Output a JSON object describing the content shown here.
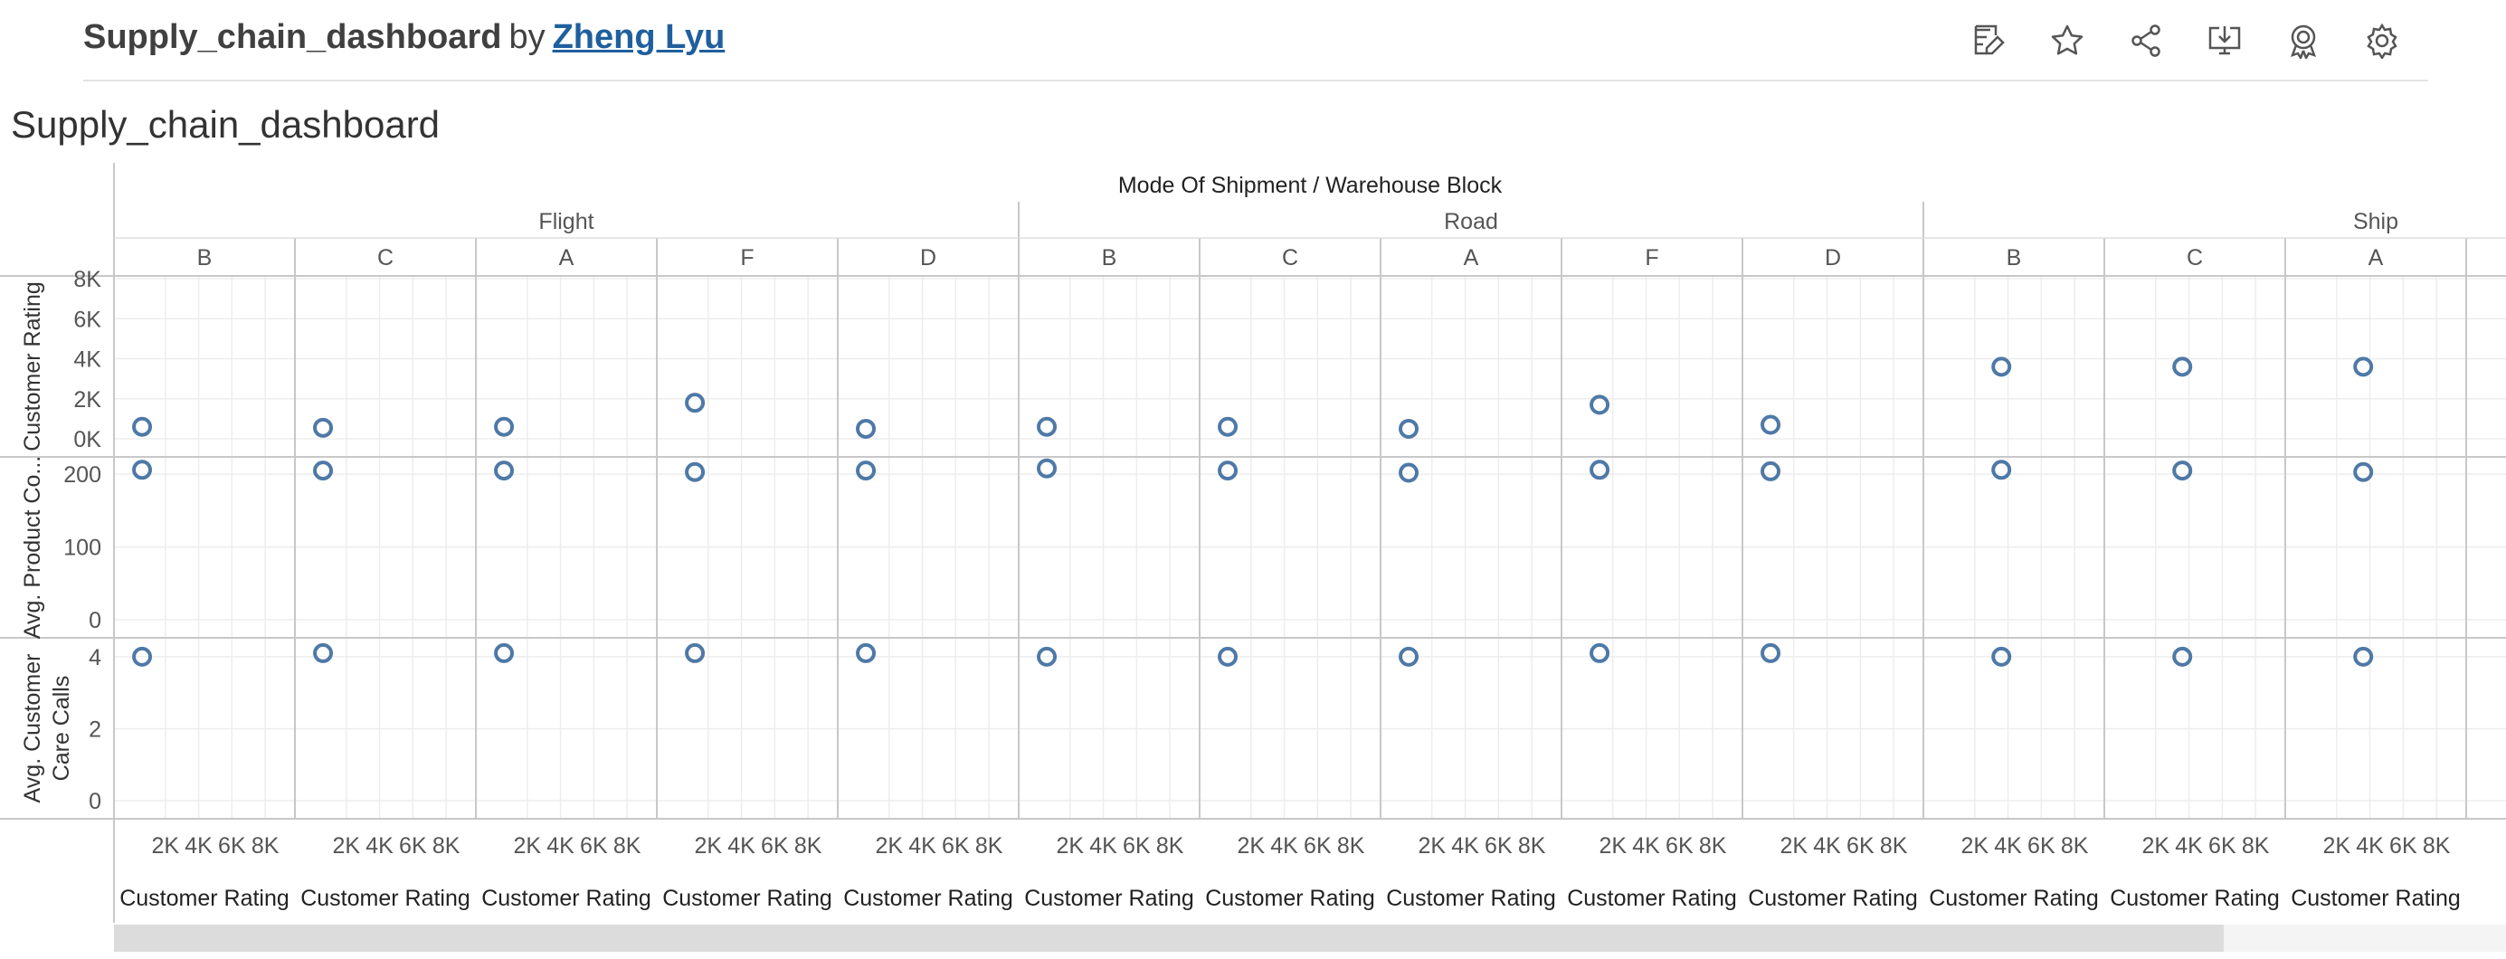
{
  "header": {
    "title": "Supply_chain_dashboard",
    "by": "by",
    "author": "Zheng Lyu"
  },
  "toolbar": {
    "icons": [
      "edit-icon",
      "favorite-star-icon",
      "share-icon",
      "download-icon",
      "badge-icon",
      "settings-gear-icon"
    ]
  },
  "sheet_title": "Supply_chain_dashboard",
  "colors": {
    "marker": "#4e79a7",
    "grid": "#ededed",
    "divider": "#c8c8c8",
    "text": "#333333"
  },
  "chart_data": {
    "type": "scatter",
    "column_header": "Mode Of Shipment / Warehouse Block",
    "x_label": "Customer Rating",
    "x_ticks": [
      "2K",
      "4K",
      "6K",
      "8K"
    ],
    "grid": true,
    "modes": [
      "Flight",
      "Road",
      "Ship"
    ],
    "rows": [
      {
        "label": "Customer Rating",
        "ticks": [
          "0K",
          "2K",
          "4K",
          "6K",
          "8K"
        ]
      },
      {
        "label": "Avg. Product Co...",
        "ticks": [
          "0",
          "100",
          "200"
        ]
      },
      {
        "label": "Avg. Customer Care Calls",
        "ticks": [
          "0",
          "2",
          "4"
        ]
      }
    ],
    "panels": [
      {
        "mode": "Flight",
        "block": "B",
        "x": 600,
        "customer_rating": 600,
        "avg_product_cost": 206,
        "avg_customer_care_calls": 4.0
      },
      {
        "mode": "Flight",
        "block": "C",
        "x": 600,
        "customer_rating": 550,
        "avg_product_cost": 205,
        "avg_customer_care_calls": 4.1
      },
      {
        "mode": "Flight",
        "block": "A",
        "x": 600,
        "customer_rating": 600,
        "avg_product_cost": 205,
        "avg_customer_care_calls": 4.1
      },
      {
        "mode": "Flight",
        "block": "F",
        "x": 1200,
        "customer_rating": 1800,
        "avg_product_cost": 203,
        "avg_customer_care_calls": 4.1
      },
      {
        "mode": "Flight",
        "block": "D",
        "x": 600,
        "customer_rating": 500,
        "avg_product_cost": 205,
        "avg_customer_care_calls": 4.1
      },
      {
        "mode": "Road",
        "block": "B",
        "x": 600,
        "customer_rating": 600,
        "avg_product_cost": 208,
        "avg_customer_care_calls": 4.0
      },
      {
        "mode": "Road",
        "block": "C",
        "x": 600,
        "customer_rating": 600,
        "avg_product_cost": 205,
        "avg_customer_care_calls": 4.0
      },
      {
        "mode": "Road",
        "block": "A",
        "x": 600,
        "customer_rating": 500,
        "avg_product_cost": 202,
        "avg_customer_care_calls": 4.0
      },
      {
        "mode": "Road",
        "block": "F",
        "x": 1200,
        "customer_rating": 1700,
        "avg_product_cost": 206,
        "avg_customer_care_calls": 4.1
      },
      {
        "mode": "Road",
        "block": "D",
        "x": 600,
        "customer_rating": 700,
        "avg_product_cost": 204,
        "avg_customer_care_calls": 4.1
      },
      {
        "mode": "Ship",
        "block": "B",
        "x": 3600,
        "customer_rating": 3600,
        "avg_product_cost": 206,
        "avg_customer_care_calls": 4.0
      },
      {
        "mode": "Ship",
        "block": "C",
        "x": 3600,
        "customer_rating": 3600,
        "avg_product_cost": 205,
        "avg_customer_care_calls": 4.0
      },
      {
        "mode": "Ship",
        "block": "A",
        "x": 3600,
        "customer_rating": 3600,
        "avg_product_cost": 203,
        "avg_customer_care_calls": 4.0
      }
    ]
  }
}
